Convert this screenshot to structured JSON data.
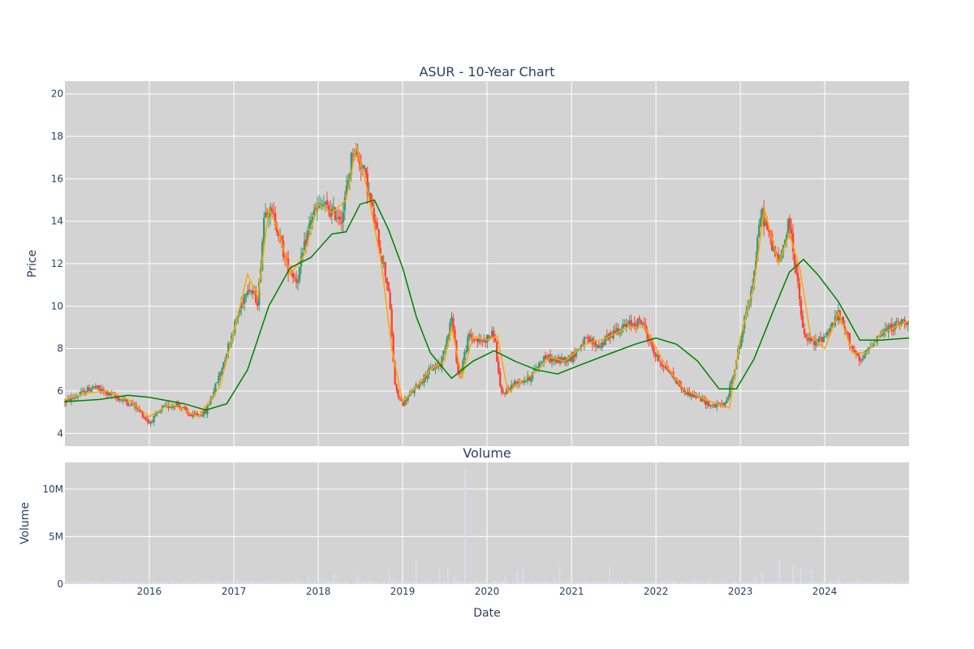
{
  "chart_data": {
    "type": "candlestick",
    "title": "ASUR - 10-Year Chart",
    "x_range": [
      "2015-01-01",
      "2024-12-31"
    ],
    "x_tick_labels": [
      "2016",
      "2017",
      "2018",
      "2019",
      "2020",
      "2021",
      "2022",
      "2023",
      "2024"
    ],
    "x_tick_dates": [
      "2016-01-01",
      "2017-01-01",
      "2018-01-01",
      "2019-01-01",
      "2020-01-01",
      "2021-01-01",
      "2022-01-01",
      "2023-01-01",
      "2024-01-01"
    ],
    "xlabel": "Date",
    "price_panel": {
      "ylabel": "Price",
      "ylim": [
        3.4,
        20.6
      ],
      "y_ticks": [
        4,
        6,
        8,
        10,
        12,
        14,
        16,
        18,
        20
      ],
      "up_color": "#3d9970",
      "down_color": "#ff4136",
      "close_anchors": [
        [
          "2015-01-01",
          5.5
        ],
        [
          "2015-03-01",
          5.8
        ],
        [
          "2015-05-01",
          6.2
        ],
        [
          "2015-07-01",
          5.9
        ],
        [
          "2015-09-01",
          5.6
        ],
        [
          "2015-11-01",
          5.3
        ],
        [
          "2016-01-01",
          4.5
        ],
        [
          "2016-03-01",
          5.2
        ],
        [
          "2016-05-01",
          5.4
        ],
        [
          "2016-07-01",
          4.8
        ],
        [
          "2016-09-01",
          5.0
        ],
        [
          "2016-11-01",
          6.8
        ],
        [
          "2017-01-01",
          9.0
        ],
        [
          "2017-03-01",
          11.0
        ],
        [
          "2017-04-15",
          10.2
        ],
        [
          "2017-05-15",
          14.8
        ],
        [
          "2017-07-01",
          14.0
        ],
        [
          "2017-08-15",
          12.0
        ],
        [
          "2017-10-01",
          11.2
        ],
        [
          "2017-12-01",
          14.2
        ],
        [
          "2018-01-15",
          14.8
        ],
        [
          "2018-03-01",
          14.4
        ],
        [
          "2018-04-15",
          14.2
        ],
        [
          "2018-06-01",
          17.5
        ],
        [
          "2018-07-15",
          16.5
        ],
        [
          "2018-09-01",
          14.0
        ],
        [
          "2018-11-01",
          10.8
        ],
        [
          "2018-12-01",
          6.0
        ],
        [
          "2019-01-01",
          5.4
        ],
        [
          "2019-03-01",
          6.2
        ],
        [
          "2019-05-01",
          7.0
        ],
        [
          "2019-06-15",
          7.3
        ],
        [
          "2019-08-01",
          9.5
        ],
        [
          "2019-09-01",
          6.6
        ],
        [
          "2019-10-15",
          8.6
        ],
        [
          "2019-12-01",
          8.3
        ],
        [
          "2020-02-01",
          8.7
        ],
        [
          "2020-03-01",
          5.8
        ],
        [
          "2020-05-01",
          6.4
        ],
        [
          "2020-07-01",
          6.6
        ],
        [
          "2020-09-01",
          7.6
        ],
        [
          "2020-11-01",
          7.4
        ],
        [
          "2021-01-01",
          7.6
        ],
        [
          "2021-03-01",
          8.4
        ],
        [
          "2021-05-01",
          8.1
        ],
        [
          "2021-07-01",
          8.8
        ],
        [
          "2021-09-01",
          9.1
        ],
        [
          "2021-11-01",
          9.3
        ],
        [
          "2022-01-01",
          7.6
        ],
        [
          "2022-03-01",
          6.9
        ],
        [
          "2022-05-01",
          6.0
        ],
        [
          "2022-07-01",
          5.7
        ],
        [
          "2022-09-01",
          5.3
        ],
        [
          "2022-11-01",
          5.4
        ],
        [
          "2022-12-15",
          7.5
        ],
        [
          "2023-02-01",
          10.0
        ],
        [
          "2023-03-01",
          11.5
        ],
        [
          "2023-04-01",
          14.5
        ],
        [
          "2023-05-15",
          13.0
        ],
        [
          "2023-06-15",
          12.0
        ],
        [
          "2023-08-01",
          14.0
        ],
        [
          "2023-09-01",
          11.5
        ],
        [
          "2023-10-01",
          8.6
        ],
        [
          "2023-11-15",
          8.2
        ],
        [
          "2024-01-01",
          8.6
        ],
        [
          "2024-03-01",
          9.6
        ],
        [
          "2024-04-15",
          8.4
        ],
        [
          "2024-06-01",
          7.3
        ],
        [
          "2024-08-01",
          8.4
        ],
        [
          "2024-09-15",
          8.8
        ],
        [
          "2024-11-01",
          9.1
        ],
        [
          "2024-12-31",
          9.4
        ]
      ],
      "series": [
        {
          "color": "#ffa500",
          "points": [
            [
              "2015-01-01",
              5.6
            ],
            [
              "2015-04-01",
              5.9
            ],
            [
              "2015-07-01",
              6.0
            ],
            [
              "2015-10-01",
              5.6
            ],
            [
              "2016-01-01",
              4.8
            ],
            [
              "2016-04-01",
              5.4
            ],
            [
              "2016-08-01",
              4.8
            ],
            [
              "2016-11-01",
              6.2
            ],
            [
              "2017-01-01",
              8.8
            ],
            [
              "2017-03-01",
              11.5
            ],
            [
              "2017-04-15",
              10.4
            ],
            [
              "2017-06-01",
              14.6
            ],
            [
              "2017-07-15",
              13.5
            ],
            [
              "2017-09-01",
              11.5
            ],
            [
              "2017-11-01",
              12.4
            ],
            [
              "2018-01-01",
              14.8
            ],
            [
              "2018-03-01",
              14.4
            ],
            [
              "2018-05-01",
              15.0
            ],
            [
              "2018-06-15",
              17.5
            ],
            [
              "2018-08-01",
              15.5
            ],
            [
              "2018-10-01",
              12.0
            ],
            [
              "2018-11-15",
              8.0
            ],
            [
              "2019-01-01",
              5.5
            ],
            [
              "2019-03-01",
              6.2
            ],
            [
              "2019-05-01",
              7.0
            ],
            [
              "2019-07-01",
              7.4
            ],
            [
              "2019-08-01",
              9.0
            ],
            [
              "2019-09-15",
              6.6
            ],
            [
              "2019-11-01",
              8.6
            ],
            [
              "2020-01-01",
              8.4
            ],
            [
              "2020-02-15",
              8.6
            ],
            [
              "2020-04-01",
              5.9
            ],
            [
              "2020-06-01",
              6.5
            ],
            [
              "2020-08-01",
              6.9
            ],
            [
              "2020-10-01",
              7.6
            ],
            [
              "2020-12-01",
              7.4
            ],
            [
              "2021-03-01",
              8.2
            ],
            [
              "2021-06-01",
              8.5
            ],
            [
              "2021-09-01",
              9.0
            ],
            [
              "2021-11-15",
              9.0
            ],
            [
              "2022-02-01",
              7.4
            ],
            [
              "2022-05-01",
              6.1
            ],
            [
              "2022-08-01",
              5.6
            ],
            [
              "2022-11-15",
              5.2
            ],
            [
              "2023-01-01",
              8.5
            ],
            [
              "2023-03-01",
              11.0
            ],
            [
              "2023-04-15",
              14.6
            ],
            [
              "2023-06-15",
              12.0
            ],
            [
              "2023-08-01",
              13.4
            ],
            [
              "2023-09-15",
              11.8
            ],
            [
              "2023-11-01",
              8.6
            ],
            [
              "2024-01-01",
              8.0
            ],
            [
              "2024-03-01",
              9.7
            ],
            [
              "2024-05-01",
              7.8
            ],
            [
              "2024-07-01",
              7.8
            ],
            [
              "2024-09-01",
              8.7
            ],
            [
              "2024-12-31",
              9.3
            ]
          ]
        },
        {
          "color": "#008000",
          "points": [
            [
              "2015-01-01",
              5.5
            ],
            [
              "2015-06-01",
              5.6
            ],
            [
              "2015-10-01",
              5.8
            ],
            [
              "2016-01-01",
              5.7
            ],
            [
              "2016-06-01",
              5.4
            ],
            [
              "2016-09-01",
              5.1
            ],
            [
              "2016-12-01",
              5.4
            ],
            [
              "2017-03-01",
              7.0
            ],
            [
              "2017-06-01",
              10.0
            ],
            [
              "2017-09-01",
              11.8
            ],
            [
              "2017-12-01",
              12.3
            ],
            [
              "2018-03-01",
              13.4
            ],
            [
              "2018-05-01",
              13.5
            ],
            [
              "2018-07-01",
              14.8
            ],
            [
              "2018-09-01",
              15.0
            ],
            [
              "2018-11-01",
              13.6
            ],
            [
              "2019-01-01",
              11.8
            ],
            [
              "2019-03-01",
              9.5
            ],
            [
              "2019-05-01",
              7.8
            ],
            [
              "2019-08-01",
              6.6
            ],
            [
              "2019-11-01",
              7.4
            ],
            [
              "2020-02-01",
              7.9
            ],
            [
              "2020-05-01",
              7.4
            ],
            [
              "2020-08-01",
              7.0
            ],
            [
              "2020-11-01",
              6.8
            ],
            [
              "2021-02-01",
              7.2
            ],
            [
              "2021-06-01",
              7.7
            ],
            [
              "2021-10-01",
              8.2
            ],
            [
              "2022-01-01",
              8.5
            ],
            [
              "2022-04-01",
              8.2
            ],
            [
              "2022-07-01",
              7.4
            ],
            [
              "2022-10-01",
              6.1
            ],
            [
              "2022-12-15",
              6.1
            ],
            [
              "2023-03-01",
              7.5
            ],
            [
              "2023-06-01",
              10.0
            ],
            [
              "2023-08-01",
              11.6
            ],
            [
              "2023-10-01",
              12.2
            ],
            [
              "2023-12-01",
              11.5
            ],
            [
              "2024-03-01",
              10.2
            ],
            [
              "2024-06-01",
              8.4
            ],
            [
              "2024-09-01",
              8.4
            ],
            [
              "2024-12-31",
              8.5
            ]
          ]
        }
      ]
    },
    "volume_panel": {
      "title": "Volume",
      "ylabel": "Volume",
      "ylim": [
        0,
        12800000
      ],
      "y_ticks": [
        0,
        5000000,
        10000000
      ],
      "y_tick_labels": [
        "0",
        "5M",
        "10M"
      ],
      "bar_color": "#dcdcf0",
      "spikes": [
        [
          "2017-01-15",
          600000
        ],
        [
          "2017-06-01",
          450000
        ],
        [
          "2017-11-20",
          900000
        ],
        [
          "2018-03-10",
          1000000
        ],
        [
          "2018-06-20",
          1100000
        ],
        [
          "2018-11-05",
          1450000
        ],
        [
          "2019-03-01",
          2600000
        ],
        [
          "2019-06-10",
          1500000
        ],
        [
          "2019-07-15",
          1700000
        ],
        [
          "2019-08-12",
          900000
        ],
        [
          "2019-09-28",
          12100000
        ],
        [
          "2020-03-20",
          800000
        ],
        [
          "2020-05-10",
          1300000
        ],
        [
          "2020-06-05",
          1600000
        ],
        [
          "2020-11-10",
          1800000
        ],
        [
          "2021-06-15",
          2000000
        ],
        [
          "2022-08-20",
          500000
        ],
        [
          "2023-03-10",
          900000
        ],
        [
          "2023-04-05",
          1300000
        ],
        [
          "2023-06-20",
          2500000
        ],
        [
          "2023-08-15",
          1800000
        ],
        [
          "2023-09-20",
          1700000
        ],
        [
          "2023-11-05",
          1500000
        ],
        [
          "2024-03-01",
          800000
        ]
      ]
    }
  }
}
